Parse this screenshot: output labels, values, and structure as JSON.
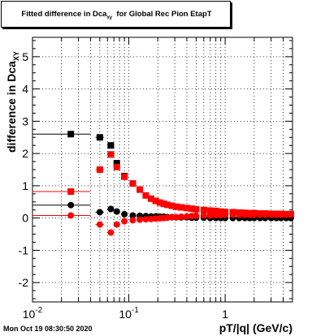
{
  "chart_data": {
    "type": "scatter",
    "title": "Fitted difference in Dca",
    "title_subscript": "xy",
    "title_suffix": "  for Global Rec Pion EtapT",
    "ylabel": "difference in Dca",
    "ylabel_subscript": "XY",
    "xlabel": "pT/|q| (GeV/c)",
    "x_scale": "log",
    "xlim": [
      0.01,
      5
    ],
    "ylim": [
      -2.6,
      5.6
    ],
    "grid": true,
    "x_ticks": [
      {
        "value": 0.01,
        "base": "10",
        "exp": "-2"
      },
      {
        "value": 0.1,
        "base": "10",
        "exp": "-1"
      },
      {
        "value": 1,
        "base": "1",
        "exp": ""
      }
    ],
    "y_ticks": [
      "-2",
      "-1",
      "0",
      "1",
      "2",
      "3",
      "4",
      "5"
    ],
    "series": [
      {
        "color": "#000000",
        "marker": "square",
        "points": [
          {
            "x": 0.025,
            "y": 2.6,
            "xerr": [
              0.01,
              0.04
            ]
          },
          {
            "x": 0.05,
            "y": 2.5,
            "xerr": [
              0.045,
              0.055
            ]
          },
          {
            "x": 0.065,
            "y": 2.25
          },
          {
            "x": 0.075,
            "y": 1.7
          },
          {
            "x": 0.09,
            "y": 1.3
          }
        ]
      },
      {
        "color": "#ff0000",
        "marker": "square",
        "points": [
          {
            "x": 0.025,
            "y": 0.82,
            "xerr": [
              0.01,
              0.04
            ]
          },
          {
            "x": 0.05,
            "y": 1.5,
            "xerr": [
              0.045,
              0.055
            ]
          },
          {
            "x": 0.065,
            "y": 1.97
          },
          {
            "x": 0.075,
            "y": 1.58
          },
          {
            "x": 0.09,
            "y": 1.28
          },
          {
            "x": 0.11,
            "y": 1.07
          },
          {
            "x": 0.13,
            "y": 0.88
          },
          {
            "x": 0.15,
            "y": 0.7
          },
          {
            "x": 0.17,
            "y": 0.6
          },
          {
            "x": 0.19,
            "y": 0.53
          },
          {
            "x": 0.21,
            "y": 0.48
          },
          {
            "x": 0.23,
            "y": 0.44
          },
          {
            "x": 0.25,
            "y": 0.41
          },
          {
            "x": 0.28,
            "y": 0.38
          },
          {
            "x": 0.31,
            "y": 0.35
          },
          {
            "x": 0.35,
            "y": 0.33
          },
          {
            "x": 0.4,
            "y": 0.31
          },
          {
            "x": 0.45,
            "y": 0.29
          },
          {
            "x": 0.5,
            "y": 0.27
          },
          {
            "x": 0.6,
            "y": 0.25
          },
          {
            "x": 0.7,
            "y": 0.23
          },
          {
            "x": 0.8,
            "y": 0.22
          },
          {
            "x": 0.9,
            "y": 0.2
          },
          {
            "x": 1.0,
            "y": 0.19
          },
          {
            "x": 1.2,
            "y": 0.18
          },
          {
            "x": 1.4,
            "y": 0.17
          },
          {
            "x": 1.6,
            "y": 0.16
          },
          {
            "x": 1.8,
            "y": 0.15
          },
          {
            "x": 2.0,
            "y": 0.15
          },
          {
            "x": 2.3,
            "y": 0.14
          },
          {
            "x": 2.6,
            "y": 0.14
          },
          {
            "x": 3.0,
            "y": 0.13
          },
          {
            "x": 3.4,
            "y": 0.13
          },
          {
            "x": 3.8,
            "y": 0.13
          },
          {
            "x": 4.3,
            "y": 0.12
          },
          {
            "x": 4.8,
            "y": 0.12
          }
        ]
      },
      {
        "color": "#000000",
        "marker": "circle",
        "points": [
          {
            "x": 0.025,
            "y": 0.4,
            "xerr": [
              0.01,
              0.04
            ]
          },
          {
            "x": 0.05,
            "y": 0.18,
            "xerr": [
              0.045,
              0.055
            ]
          },
          {
            "x": 0.065,
            "y": 0.28
          },
          {
            "x": 0.075,
            "y": 0.2
          },
          {
            "x": 0.09,
            "y": 0.12
          },
          {
            "x": 0.11,
            "y": 0.08
          },
          {
            "x": 0.13,
            "y": 0.07
          },
          {
            "x": 0.15,
            "y": 0.06
          },
          {
            "x": 0.17,
            "y": 0.05
          },
          {
            "x": 0.19,
            "y": 0.05
          },
          {
            "x": 0.21,
            "y": 0.04
          },
          {
            "x": 0.23,
            "y": 0.04
          },
          {
            "x": 0.25,
            "y": 0.03
          },
          {
            "x": 0.28,
            "y": 0.03
          },
          {
            "x": 0.31,
            "y": 0.02
          },
          {
            "x": 0.35,
            "y": 0.02
          },
          {
            "x": 0.4,
            "y": 0.02
          },
          {
            "x": 0.45,
            "y": 0.01
          },
          {
            "x": 0.5,
            "y": 0.01
          },
          {
            "x": 0.6,
            "y": 0.01
          },
          {
            "x": 0.7,
            "y": 0.0
          },
          {
            "x": 0.8,
            "y": 0.0
          },
          {
            "x": 0.9,
            "y": 0.0
          },
          {
            "x": 1.0,
            "y": 0.0
          },
          {
            "x": 1.2,
            "y": 0.0
          },
          {
            "x": 1.4,
            "y": 0.0
          },
          {
            "x": 1.6,
            "y": 0.0
          },
          {
            "x": 1.8,
            "y": 0.0
          },
          {
            "x": 2.0,
            "y": 0.0
          },
          {
            "x": 2.3,
            "y": 0.0
          },
          {
            "x": 2.6,
            "y": 0.0
          },
          {
            "x": 3.0,
            "y": 0.0
          },
          {
            "x": 3.4,
            "y": 0.0
          },
          {
            "x": 3.8,
            "y": 0.0
          },
          {
            "x": 4.3,
            "y": 0.0
          },
          {
            "x": 4.8,
            "y": 0.0
          }
        ]
      },
      {
        "color": "#ff0000",
        "marker": "circle",
        "points": [
          {
            "x": 0.025,
            "y": 0.08,
            "xerr": [
              0.01,
              0.04
            ]
          },
          {
            "x": 0.05,
            "y": -0.2,
            "xerr": [
              0.045,
              0.055
            ]
          },
          {
            "x": 0.065,
            "y": -0.45
          },
          {
            "x": 0.075,
            "y": -0.2
          },
          {
            "x": 0.09,
            "y": -0.1
          },
          {
            "x": 0.11,
            "y": -0.07
          },
          {
            "x": 0.13,
            "y": -0.05
          },
          {
            "x": 0.15,
            "y": -0.04
          },
          {
            "x": 0.17,
            "y": -0.03
          },
          {
            "x": 0.19,
            "y": -0.02
          },
          {
            "x": 0.21,
            "y": -0.01
          },
          {
            "x": 0.23,
            "y": 0.0
          },
          {
            "x": 0.25,
            "y": 0.01
          },
          {
            "x": 0.28,
            "y": 0.02
          },
          {
            "x": 0.31,
            "y": 0.03
          },
          {
            "x": 0.35,
            "y": 0.04
          },
          {
            "x": 0.4,
            "y": 0.05
          },
          {
            "x": 0.45,
            "y": 0.06
          },
          {
            "x": 0.5,
            "y": 0.07
          },
          {
            "x": 0.6,
            "y": 0.08
          },
          {
            "x": 0.7,
            "y": 0.08
          },
          {
            "x": 0.8,
            "y": 0.09
          },
          {
            "x": 0.9,
            "y": 0.09
          },
          {
            "x": 1.0,
            "y": 0.1
          },
          {
            "x": 1.2,
            "y": 0.1
          },
          {
            "x": 1.4,
            "y": 0.1
          },
          {
            "x": 1.6,
            "y": 0.1
          },
          {
            "x": 1.8,
            "y": 0.1
          },
          {
            "x": 2.0,
            "y": 0.1
          },
          {
            "x": 2.3,
            "y": 0.1
          },
          {
            "x": 2.6,
            "y": 0.1
          },
          {
            "x": 3.0,
            "y": 0.1
          },
          {
            "x": 3.4,
            "y": 0.1
          },
          {
            "x": 3.8,
            "y": 0.1
          },
          {
            "x": 4.3,
            "y": 0.1
          },
          {
            "x": 4.8,
            "y": 0.1
          }
        ]
      }
    ]
  },
  "footer": {
    "timestamp": "Mon Oct 19 08:30:50 2020"
  }
}
